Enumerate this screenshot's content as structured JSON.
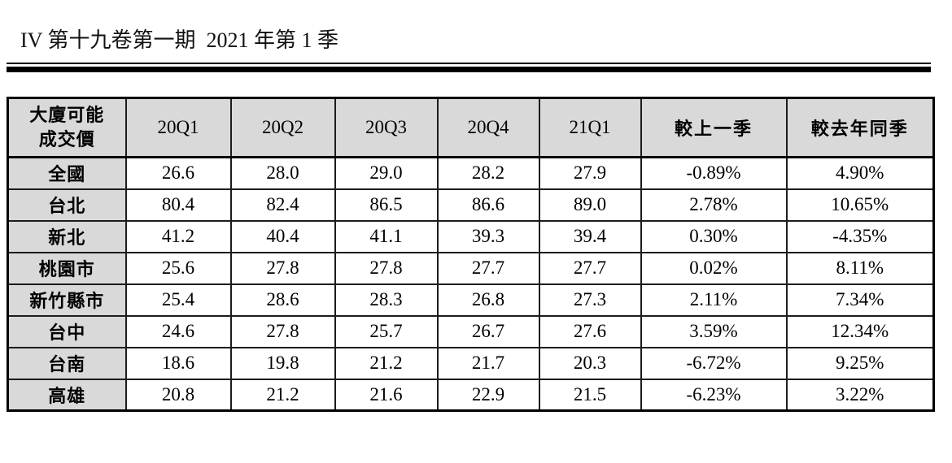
{
  "header": {
    "title": "IV 第十九卷第一期  2021 年第 1 季"
  },
  "table": {
    "corner_header": {
      "line1": "大廈可能",
      "line2": "成交價"
    },
    "column_headers": [
      "20Q1",
      "20Q2",
      "20Q3",
      "20Q4",
      "21Q1",
      "較上一季",
      "較去年同季"
    ],
    "rows": [
      {
        "region": "全國",
        "values": [
          "26.6",
          "28.0",
          "29.0",
          "28.2",
          "27.9",
          "-0.89%",
          "4.90%"
        ]
      },
      {
        "region": "台北",
        "values": [
          "80.4",
          "82.4",
          "86.5",
          "86.6",
          "89.0",
          "2.78%",
          "10.65%"
        ]
      },
      {
        "region": "新北",
        "values": [
          "41.2",
          "40.4",
          "41.1",
          "39.3",
          "39.4",
          "0.30%",
          "-4.35%"
        ]
      },
      {
        "region": "桃園市",
        "values": [
          "25.6",
          "27.8",
          "27.8",
          "27.7",
          "27.7",
          "0.02%",
          "8.11%"
        ]
      },
      {
        "region": "新竹縣市",
        "values": [
          "25.4",
          "28.6",
          "28.3",
          "26.8",
          "27.3",
          "2.11%",
          "7.34%"
        ]
      },
      {
        "region": "台中",
        "values": [
          "24.6",
          "27.8",
          "25.7",
          "26.7",
          "27.6",
          "3.59%",
          "12.34%"
        ]
      },
      {
        "region": "台南",
        "values": [
          "18.6",
          "19.8",
          "21.2",
          "21.7",
          "20.3",
          "-6.72%",
          "9.25%"
        ]
      },
      {
        "region": "高雄",
        "values": [
          "20.8",
          "21.2",
          "21.6",
          "22.9",
          "21.5",
          "-6.23%",
          "3.22%"
        ]
      }
    ],
    "colors": {
      "header_bg": "#d9d9d9",
      "border": "#000000",
      "page_bg": "#ffffff"
    }
  }
}
